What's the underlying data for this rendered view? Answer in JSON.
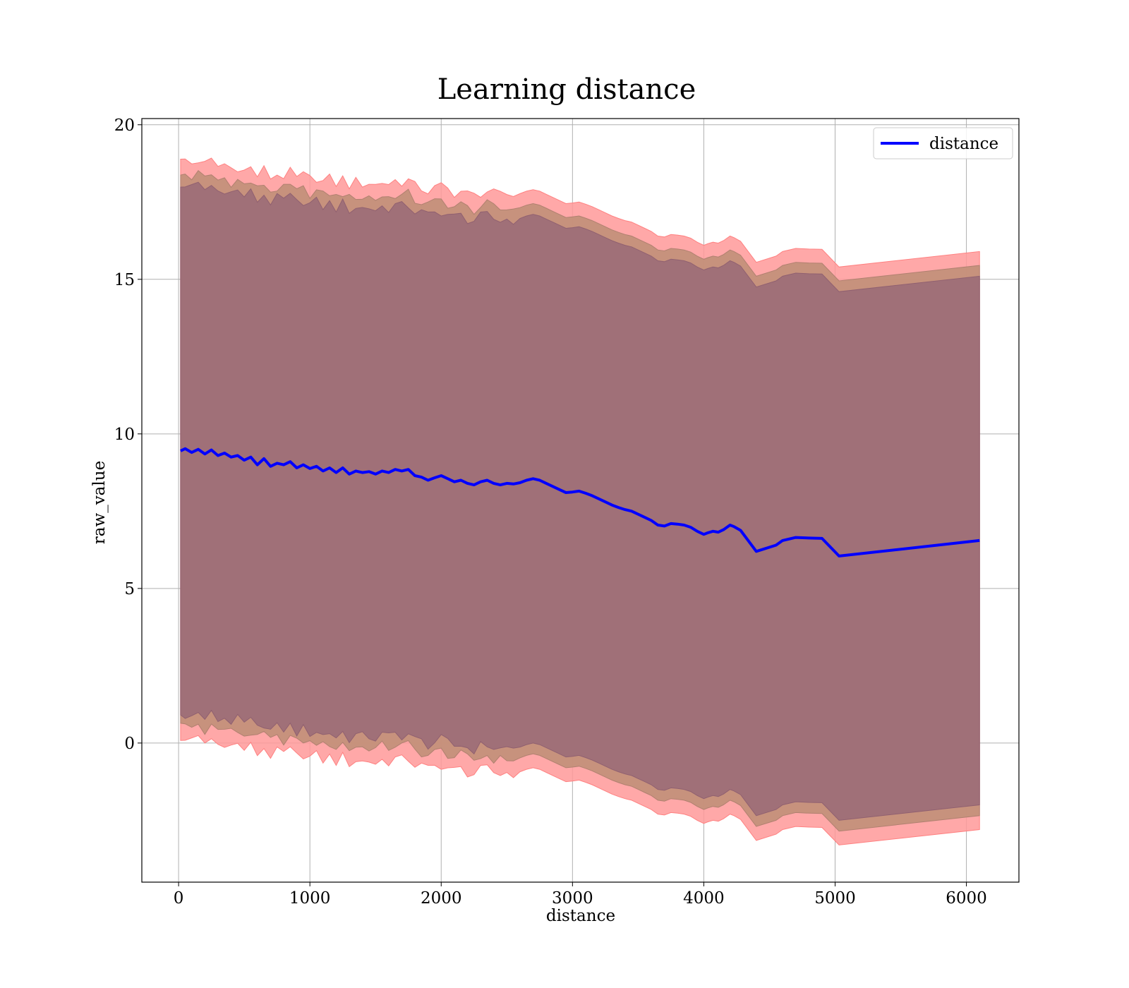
{
  "chart_data": {
    "type": "line",
    "title": "Learning distance",
    "xlabel": "distance",
    "ylabel": "raw_value",
    "xlim": [
      -280,
      6400
    ],
    "ylim": [
      -4.5,
      20.2
    ],
    "xticks": [
      0,
      1000,
      2000,
      3000,
      4000,
      5000,
      6000
    ],
    "yticks": [
      0,
      5,
      10,
      15,
      20
    ],
    "grid": true,
    "legend": {
      "position": "top-right",
      "entries": [
        "distance"
      ]
    },
    "colors": {
      "line": "#0000ff",
      "band_outer": "#ff9999",
      "band_middle": "#c4907a",
      "band_inner": "#a07078",
      "grid": "#b0b0b0"
    },
    "series": [
      {
        "name": "distance",
        "x": [
          15,
          50,
          100,
          150,
          200,
          250,
          300,
          350,
          400,
          450,
          500,
          550,
          600,
          650,
          700,
          750,
          800,
          850,
          900,
          950,
          1000,
          1050,
          1100,
          1150,
          1200,
          1250,
          1300,
          1350,
          1400,
          1450,
          1500,
          1550,
          1600,
          1650,
          1700,
          1750,
          1800,
          1850,
          1900,
          1950,
          2000,
          2050,
          2100,
          2150,
          2200,
          2250,
          2300,
          2350,
          2400,
          2450,
          2500,
          2550,
          2600,
          2650,
          2700,
          2750,
          2800,
          2850,
          2900,
          2950,
          3000,
          3050,
          3100,
          3150,
          3200,
          3250,
          3300,
          3350,
          3400,
          3450,
          3500,
          3550,
          3600,
          3650,
          3700,
          3750,
          3800,
          3850,
          3900,
          3950,
          4000,
          4030,
          4070,
          4110,
          4150,
          4200,
          4230,
          4280,
          4400,
          4550,
          4600,
          4700,
          4800,
          4900,
          5030,
          6100
        ],
        "y": [
          9.45,
          9.52,
          9.4,
          9.5,
          9.35,
          9.48,
          9.3,
          9.38,
          9.25,
          9.3,
          9.15,
          9.25,
          9.0,
          9.2,
          8.95,
          9.05,
          9.0,
          9.1,
          8.9,
          9.0,
          8.88,
          8.95,
          8.8,
          8.9,
          8.75,
          8.9,
          8.7,
          8.8,
          8.75,
          8.78,
          8.7,
          8.8,
          8.75,
          8.85,
          8.8,
          8.85,
          8.65,
          8.6,
          8.5,
          8.58,
          8.65,
          8.55,
          8.45,
          8.5,
          8.4,
          8.35,
          8.45,
          8.5,
          8.4,
          8.35,
          8.4,
          8.38,
          8.42,
          8.5,
          8.55,
          8.5,
          8.4,
          8.3,
          8.2,
          8.1,
          8.12,
          8.15,
          8.08,
          8.0,
          7.9,
          7.8,
          7.7,
          7.62,
          7.55,
          7.5,
          7.4,
          7.3,
          7.2,
          7.05,
          7.02,
          7.1,
          7.08,
          7.05,
          6.98,
          6.85,
          6.75,
          6.8,
          6.85,
          6.82,
          6.9,
          7.05,
          7.0,
          6.88,
          6.2,
          6.4,
          6.55,
          6.65,
          6.63,
          6.62,
          6.05,
          6.55
        ]
      }
    ],
    "bands": {
      "outer_sd": 9.35,
      "middle_sd": 8.9,
      "inner_sd": 8.55
    }
  }
}
